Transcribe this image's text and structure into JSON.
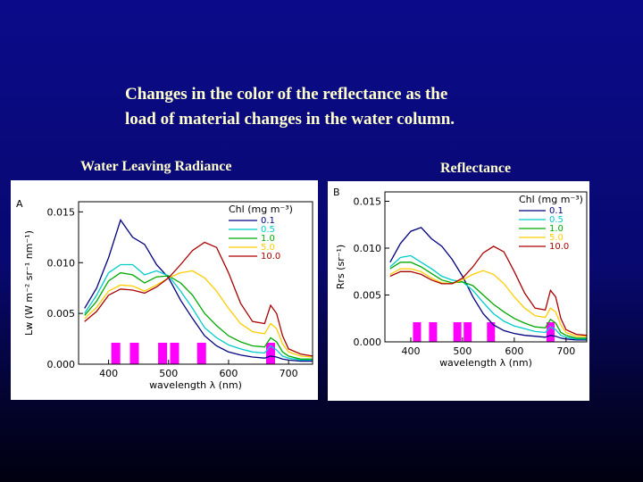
{
  "slide": {
    "title_line1": "Changes in the color of the reflectance as the",
    "title_line2": "load of material changes in the water column.",
    "left_subtitle": "Water Leaving Radiance",
    "right_subtitle": "Reflectance"
  },
  "colors": {
    "background": "#0a0a80",
    "title_text": "#ffffcc",
    "band": "#ff00ff",
    "series": [
      "#000080",
      "#00cccc",
      "#00aa00",
      "#ffcc00",
      "#aa0000"
    ]
  },
  "chart_data": [
    {
      "type": "line",
      "panel_label": "A",
      "xlabel": "wavelength λ (nm)",
      "ylabel": "Lw (W m⁻² sr⁻¹ nm⁻¹)",
      "xlim": [
        350,
        740
      ],
      "ylim": [
        0,
        0.016
      ],
      "xticks": [
        400,
        500,
        600,
        700
      ],
      "yticks": [
        0.0,
        0.005,
        0.01,
        0.015
      ],
      "ytick_labels": [
        "0.000",
        "0.005",
        "0.010",
        "0.015"
      ],
      "legend_title": "Chl (mg m⁻³)",
      "legend_position": "top-right",
      "x": [
        360,
        380,
        400,
        420,
        440,
        460,
        480,
        500,
        520,
        540,
        560,
        580,
        600,
        620,
        640,
        660,
        670,
        680,
        690,
        700,
        720,
        740
      ],
      "series": [
        {
          "name": "0.1",
          "values": [
            0.0055,
            0.0075,
            0.0105,
            0.0142,
            0.0125,
            0.0118,
            0.0098,
            0.0085,
            0.0063,
            0.0045,
            0.0028,
            0.0018,
            0.0012,
            0.0009,
            0.0007,
            0.0006,
            0.0008,
            0.0007,
            0.0005,
            0.0004,
            0.0003,
            0.0003
          ]
        },
        {
          "name": "0.5",
          "values": [
            0.005,
            0.0068,
            0.009,
            0.0098,
            0.0098,
            0.0088,
            0.0092,
            0.0087,
            0.0072,
            0.0055,
            0.0036,
            0.0026,
            0.0019,
            0.0015,
            0.0012,
            0.0011,
            0.0018,
            0.0014,
            0.0008,
            0.0006,
            0.0004,
            0.0004
          ]
        },
        {
          "name": "1.0",
          "values": [
            0.0048,
            0.0062,
            0.0082,
            0.009,
            0.0088,
            0.008,
            0.0086,
            0.0087,
            0.008,
            0.0068,
            0.005,
            0.0038,
            0.0028,
            0.0022,
            0.0018,
            0.0017,
            0.0026,
            0.0022,
            0.0012,
            0.0008,
            0.0005,
            0.0005
          ]
        },
        {
          "name": "5.0",
          "values": [
            0.0045,
            0.0056,
            0.0072,
            0.0078,
            0.0077,
            0.0072,
            0.0078,
            0.0085,
            0.009,
            0.0092,
            0.0085,
            0.0072,
            0.0055,
            0.004,
            0.0032,
            0.003,
            0.004,
            0.0035,
            0.002,
            0.0012,
            0.0008,
            0.0007
          ]
        },
        {
          "name": "10.0",
          "values": [
            0.0042,
            0.0052,
            0.0068,
            0.0074,
            0.0073,
            0.007,
            0.0076,
            0.0085,
            0.0098,
            0.0112,
            0.012,
            0.0115,
            0.009,
            0.006,
            0.0042,
            0.004,
            0.0058,
            0.005,
            0.0028,
            0.0015,
            0.001,
            0.0008
          ]
        }
      ],
      "bands_nm": [
        412,
        443,
        490,
        510,
        555,
        670
      ]
    },
    {
      "type": "line",
      "panel_label": "B",
      "xlabel": "wavelength λ (nm)",
      "ylabel": "Rrs (sr⁻¹)",
      "xlim": [
        350,
        740
      ],
      "ylim": [
        0,
        0.016
      ],
      "xticks": [
        400,
        500,
        600,
        700
      ],
      "yticks": [
        0.0,
        0.005,
        0.01,
        0.015
      ],
      "ytick_labels": [
        "0.000",
        "0.005",
        "0.010",
        "0.015"
      ],
      "legend_title": "Chl (mg m⁻³)",
      "legend_position": "top-right",
      "x": [
        360,
        380,
        400,
        420,
        440,
        460,
        480,
        500,
        520,
        540,
        560,
        580,
        600,
        620,
        640,
        660,
        670,
        680,
        690,
        700,
        720,
        740
      ],
      "series": [
        {
          "name": "0.1",
          "values": [
            0.0085,
            0.0105,
            0.0118,
            0.0122,
            0.011,
            0.0102,
            0.0088,
            0.007,
            0.0048,
            0.003,
            0.0018,
            0.0012,
            0.0009,
            0.0007,
            0.0006,
            0.0005,
            0.0007,
            0.0006,
            0.0004,
            0.0003,
            0.0002,
            0.0002
          ]
        },
        {
          "name": "0.5",
          "values": [
            0.008,
            0.009,
            0.0092,
            0.0085,
            0.0078,
            0.007,
            0.0066,
            0.0064,
            0.0055,
            0.0042,
            0.003,
            0.0022,
            0.0017,
            0.0014,
            0.0011,
            0.001,
            0.0016,
            0.0013,
            0.0007,
            0.0005,
            0.0003,
            0.0003
          ]
        },
        {
          "name": "1.0",
          "values": [
            0.0078,
            0.0085,
            0.0085,
            0.008,
            0.0073,
            0.0066,
            0.0063,
            0.0064,
            0.006,
            0.005,
            0.004,
            0.0032,
            0.0025,
            0.002,
            0.0016,
            0.0015,
            0.0024,
            0.002,
            0.001,
            0.0007,
            0.0004,
            0.0004
          ]
        },
        {
          "name": "5.0",
          "values": [
            0.0072,
            0.0078,
            0.0078,
            0.0075,
            0.0068,
            0.0063,
            0.0062,
            0.0066,
            0.0072,
            0.0076,
            0.0072,
            0.0062,
            0.0048,
            0.0036,
            0.0028,
            0.0026,
            0.0036,
            0.0032,
            0.0018,
            0.001,
            0.0006,
            0.0006
          ]
        },
        {
          "name": "10.0",
          "values": [
            0.007,
            0.0075,
            0.0075,
            0.0072,
            0.0066,
            0.0062,
            0.0062,
            0.0068,
            0.008,
            0.0095,
            0.0102,
            0.0096,
            0.0075,
            0.0052,
            0.0036,
            0.0034,
            0.0055,
            0.0048,
            0.0025,
            0.0013,
            0.0008,
            0.0007
          ]
        }
      ],
      "bands_nm": [
        412,
        443,
        490,
        510,
        555,
        670
      ]
    }
  ]
}
